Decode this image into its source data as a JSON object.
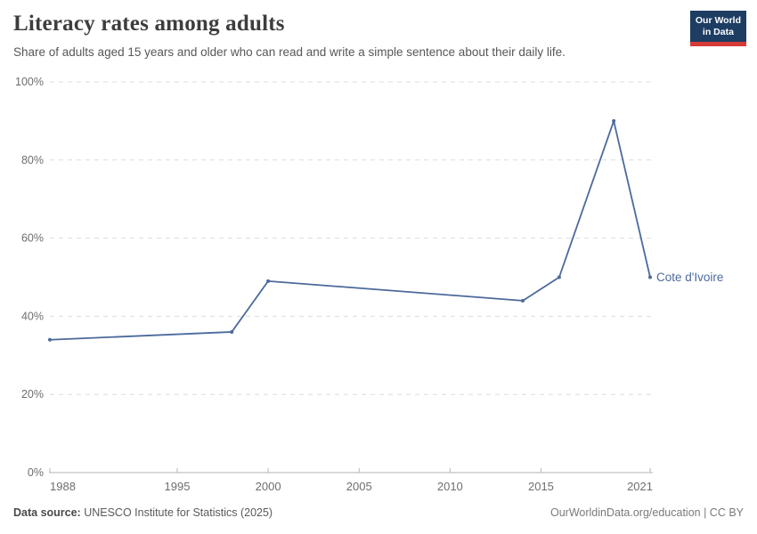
{
  "header": {
    "title": "Literacy rates among adults",
    "subtitle": "Share of adults aged 15 years and older who can read and write a simple sentence about their daily life.",
    "logo_line1": "Our World",
    "logo_line2": "in Data"
  },
  "footer": {
    "source_label": "Data source:",
    "source_text": " UNESCO Institute for Statistics (2025)",
    "credit": "OurWorldinData.org/education | CC BY"
  },
  "colors": {
    "line": "#4C6A9C",
    "grid": "#DCDCDC",
    "axis": "#B5B5B5",
    "tick_label": "#6E6E6E",
    "logo_bg": "#1D3D63",
    "logo_accent": "#D73A36"
  },
  "chart_data": {
    "type": "line",
    "title": "Literacy rates among adults",
    "xlabel": "",
    "ylabel": "",
    "xlim": [
      1988,
      2021
    ],
    "ylim": [
      0,
      100
    ],
    "grid": "horizontal-dashed",
    "legend_position": "end-of-line-label",
    "yticks": [
      {
        "value": 0,
        "label": "0%"
      },
      {
        "value": 20,
        "label": "20%"
      },
      {
        "value": 40,
        "label": "40%"
      },
      {
        "value": 60,
        "label": "60%"
      },
      {
        "value": 80,
        "label": "80%"
      },
      {
        "value": 100,
        "label": "100%"
      }
    ],
    "xticks": [
      {
        "value": 1988,
        "label": "1988"
      },
      {
        "value": 1995,
        "label": "1995"
      },
      {
        "value": 2000,
        "label": "2000"
      },
      {
        "value": 2005,
        "label": "2005"
      },
      {
        "value": 2010,
        "label": "2010"
      },
      {
        "value": 2015,
        "label": "2015"
      },
      {
        "value": 2021,
        "label": "2021"
      }
    ],
    "series": [
      {
        "name": "Cote d'Ivoire",
        "color": "#4C6A9C",
        "points": [
          [
            1988,
            34
          ],
          [
            1998,
            36
          ],
          [
            2000,
            49
          ],
          [
            2014,
            44
          ],
          [
            2016,
            50
          ],
          [
            2019,
            90
          ],
          [
            2021,
            50
          ]
        ]
      }
    ]
  }
}
